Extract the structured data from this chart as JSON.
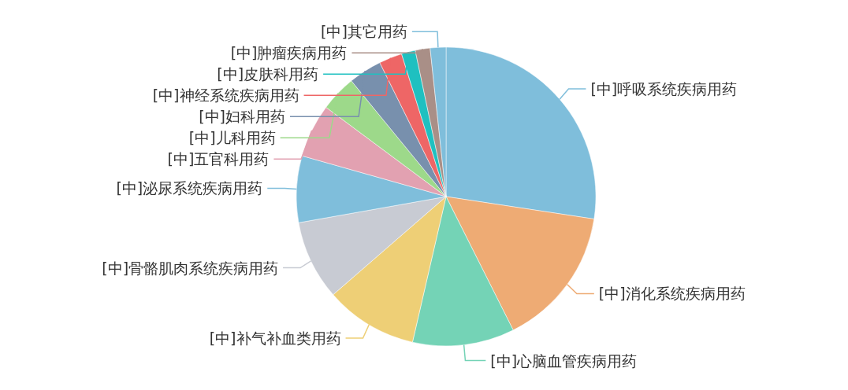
{
  "chart_data": {
    "type": "pie",
    "categories": [
      "[中]呼吸系统疾病用药",
      "[中]消化系统疾病用药",
      "[中]心脑血管疾病用药",
      "[中]补气补血类用药",
      "[中]骨骼肌肉系统疾病用药",
      "[中]泌尿系统疾病用药",
      "[中]五官科用药",
      "[中]儿科用药",
      "[中]妇科用药",
      "[中]神经系统疾病用药",
      "[中]皮肤科用药",
      "[中]肿瘤疾病用药",
      "[中]其它用药"
    ],
    "values": [
      27.4,
      15.2,
      11.0,
      10.0,
      8.6,
      7.2,
      5.8,
      3.9,
      3.6,
      2.5,
      1.5,
      1.6,
      1.7
    ],
    "colors": [
      "#7fbedb",
      "#eeab74",
      "#74d3b6",
      "#eecf76",
      "#c8cbd3",
      "#7fbedb",
      "#e2a1b1",
      "#9dd98a",
      "#7890ad",
      "#ee6666",
      "#1fc0c0",
      "#a98f87",
      "#7fbedb"
    ]
  }
}
